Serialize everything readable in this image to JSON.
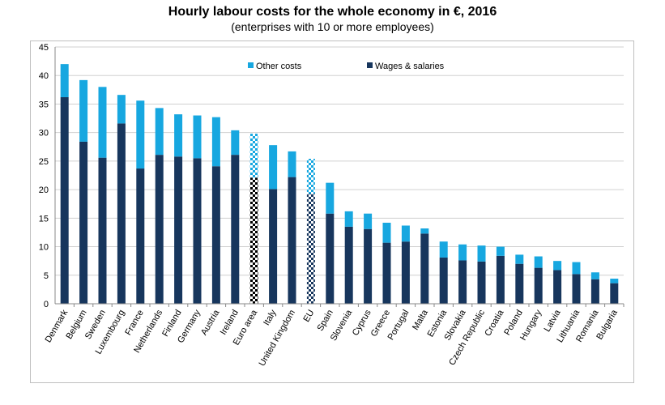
{
  "chart_data": {
    "type": "bar",
    "stacked": true,
    "title": "Hourly labour costs for the whole economy in €, 2016",
    "subtitle": "(enterprises with 10 or more employees)",
    "xlabel": "",
    "ylabel": "",
    "ylim": [
      0,
      45
    ],
    "yticks": [
      0,
      5,
      10,
      15,
      20,
      25,
      30,
      35,
      40,
      45
    ],
    "grid": true,
    "legend_position": "top",
    "categories": [
      "Denmark",
      "Belgium",
      "Sweden",
      "Luxembourg",
      "France",
      "Netherlands",
      "Finland",
      "Germany",
      "Austria",
      "Ireland",
      "Euro area",
      "Italy",
      "United Kingdom",
      "EU",
      "Spain",
      "Slovenia",
      "Cyprus",
      "Greece",
      "Portugal",
      "Malta",
      "Estonia",
      "Slovakia",
      "Czech Republic",
      "Croatia",
      "Poland",
      "Hungary",
      "Latvia",
      "Lithuania",
      "Romania",
      "Bulgaria"
    ],
    "aggregates_patterned": [
      "Euro area",
      "EU"
    ],
    "series": [
      {
        "name": "Wages & salaries",
        "color": "#17365d",
        "values": [
          36.2,
          28.4,
          25.6,
          31.6,
          23.7,
          26.1,
          25.8,
          25.5,
          24.1,
          26.1,
          22.1,
          20.1,
          22.2,
          19.3,
          15.8,
          13.5,
          13.1,
          10.7,
          10.9,
          12.3,
          8.1,
          7.6,
          7.4,
          8.4,
          7.0,
          6.3,
          5.9,
          5.2,
          4.3,
          3.6
        ]
      },
      {
        "name": "Other costs",
        "color": "#17a7e0",
        "values": [
          5.8,
          10.8,
          12.4,
          5.0,
          11.9,
          8.2,
          7.4,
          7.5,
          8.6,
          4.3,
          7.7,
          7.7,
          4.5,
          6.1,
          5.4,
          2.7,
          2.7,
          3.5,
          2.8,
          0.9,
          2.8,
          2.8,
          2.8,
          1.6,
          1.6,
          2.0,
          1.6,
          2.1,
          1.2,
          0.8
        ]
      }
    ]
  }
}
